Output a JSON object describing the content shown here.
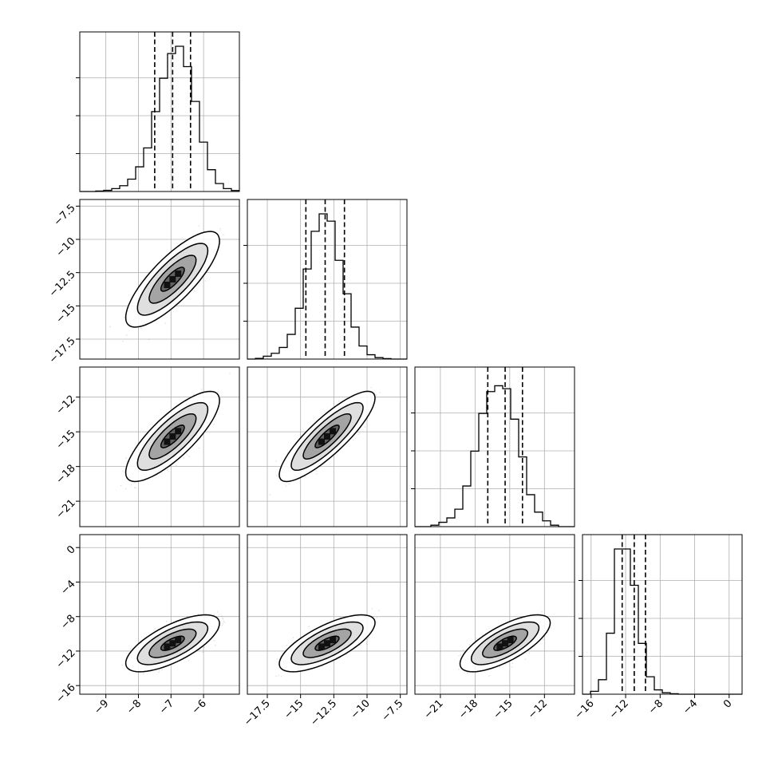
{
  "chart_data": {
    "type": "corner",
    "title": "",
    "parameters": [
      {
        "label": "",
        "range": [
          -9.8,
          -4.9
        ],
        "ticks": [
          -9,
          -8,
          -7,
          -6
        ],
        "quantiles": [
          -7.5,
          -6.95,
          -6.4
        ],
        "hist": {
          "start": -9.8,
          "step": 0.245,
          "heights": [
            0,
            0,
            0.003,
            0.008,
            0.02,
            0.04,
            0.085,
            0.17,
            0.3,
            0.55,
            0.78,
            0.95,
            1.0,
            0.86,
            0.62,
            0.34,
            0.15,
            0.055,
            0.02,
            0.007
          ]
        }
      },
      {
        "label": "",
        "range": [
          -19.0,
          -7.0
        ],
        "ticks": [
          -17.5,
          -15.0,
          -12.5,
          -10.0,
          -7.5
        ],
        "quantiles": [
          -14.6,
          -13.15,
          -11.7
        ],
        "hist": {
          "start": -19.0,
          "step": 0.6,
          "heights": [
            0,
            0.005,
            0.02,
            0.04,
            0.08,
            0.17,
            0.35,
            0.62,
            0.88,
            1.0,
            0.95,
            0.68,
            0.45,
            0.22,
            0.09,
            0.03,
            0.01,
            0.003,
            0,
            0
          ]
        }
      },
      {
        "label": "",
        "range": [
          -23.2,
          -9.4
        ],
        "ticks": [
          -21,
          -18,
          -15,
          -12
        ],
        "quantiles": [
          -16.9,
          -15.4,
          -13.9
        ],
        "hist": {
          "start": -23.2,
          "step": 0.69,
          "heights": [
            0,
            0,
            0.01,
            0.03,
            0.06,
            0.12,
            0.28,
            0.52,
            0.78,
            0.93,
            0.97,
            0.95,
            0.74,
            0.48,
            0.22,
            0.1,
            0.04,
            0.01,
            0,
            0
          ]
        }
      },
      {
        "label": "",
        "range": [
          -17.0,
          1.5
        ],
        "ticks": [
          -16,
          -12,
          -8,
          -4,
          0
        ],
        "quantiles": [
          -12.4,
          -11.0,
          -9.7
        ],
        "hist": {
          "start": -17.0,
          "step": 0.925,
          "heights": [
            0,
            0.02,
            0.1,
            0.42,
            1.0,
            1.0,
            0.75,
            0.35,
            0.12,
            0.03,
            0.01,
            0.003,
            0,
            0,
            0,
            0,
            0,
            0,
            0,
            0
          ]
        }
      }
    ],
    "yticks": [
      [],
      [
        -7.5,
        -10.0,
        -12.5,
        -15.0,
        -17.5
      ],
      [
        -12,
        -15,
        -18,
        -21
      ],
      [
        0,
        -4,
        -8,
        -12,
        -16
      ]
    ],
    "means": [
      -6.95,
      -13.0,
      -15.4,
      -11.1
    ],
    "stds": [
      0.48,
      1.2,
      1.3,
      1.1
    ],
    "correlations": [
      [
        1,
        0.8,
        0.8,
        0.7
      ],
      [
        0.8,
        1,
        0.85,
        0.72
      ],
      [
        0.8,
        0.85,
        1,
        0.72
      ],
      [
        0.7,
        0.72,
        0.72,
        1
      ]
    ],
    "grid": true,
    "contour_levels_sigma": [
      0.5,
      1.0,
      1.5,
      2.0
    ]
  }
}
